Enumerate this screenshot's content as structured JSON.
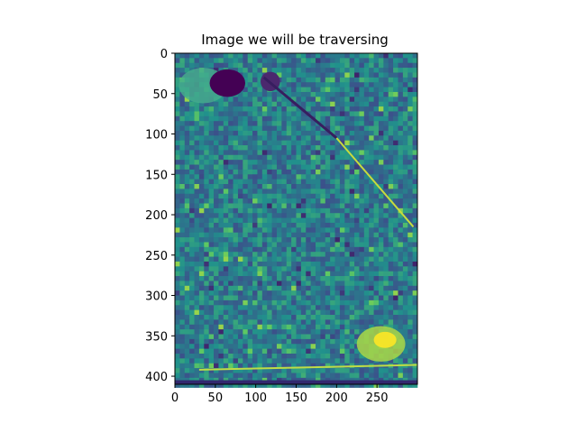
{
  "chart_data": {
    "type": "heatmap",
    "title": "Image we will be traversing",
    "xlabel": "",
    "ylabel": "",
    "colormap": "viridis",
    "image_width": 300,
    "image_height": 410,
    "xlim": [
      0,
      300
    ],
    "ylim": [
      410,
      0
    ],
    "x_ticks": [
      0,
      50,
      100,
      150,
      200,
      250
    ],
    "y_ticks": [
      0,
      50,
      100,
      150,
      200,
      250,
      300,
      350,
      400
    ],
    "features": {
      "dark_leaf_region": {
        "x_center": 65,
        "y_center": 37
      },
      "dark_stem_line": {
        "x_start": 110,
        "y_start": 30,
        "x_end": 200,
        "y_end": 105
      },
      "bright_crack": {
        "x_start": 200,
        "y_start": 105,
        "x_end": 295,
        "y_end": 215
      },
      "bright_patch": {
        "x_center": 255,
        "y_center": 360
      },
      "bottom_bright_edge": {
        "y": 392
      },
      "dark_bottom_band": {
        "y_from": 405,
        "y_to": 410
      }
    }
  },
  "colors": {
    "viridis_dark": "#440154",
    "viridis_mid": "#21918c",
    "viridis_base": "#2a8b87",
    "viridis_bright": "#fde725"
  }
}
